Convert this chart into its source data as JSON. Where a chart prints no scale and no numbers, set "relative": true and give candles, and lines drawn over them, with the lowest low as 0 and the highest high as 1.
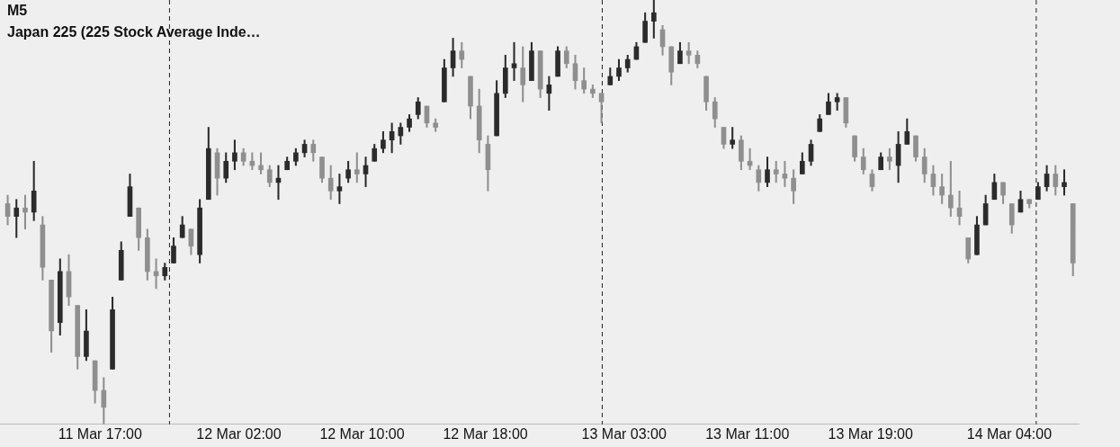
{
  "chart_data": {
    "type": "candlestick",
    "title": "M5",
    "subtitle": "Japan 225 (225 Stock Average Inde…",
    "relative": true,
    "colors": [
      "#8f8f8f",
      "#2b2b2b",
      "#8f8f8f",
      "#2b2b2b",
      "#8f8f8f",
      "#8f8f8f",
      "#2b2b2b",
      "#8f8f8f",
      "#8f8f8f",
      "#2b2b2b",
      "#8f8f8f",
      "#8f8f8f",
      "#2b2b2b",
      "#2b2b2b",
      "#2b2b2b",
      "#8f8f8f",
      "#8f8f8f",
      "#8f8f8f",
      "#2b2b2b",
      "#2b2b2b",
      "#2b2b2b",
      "#8f8f8f",
      "#2b2b2b",
      "#2b2b2b",
      "#8f8f8f",
      "#2b2b2b",
      "#2b2b2b",
      "#8f8f8f",
      "#8f8f8f",
      "#8f8f8f",
      "#8f8f8f",
      "#2b2b2b",
      "#2b2b2b",
      "#2b2b2b",
      "#2b2b2b",
      "#8f8f8f",
      "#8f8f8f",
      "#8f8f8f",
      "#2b2b2b",
      "#2b2b2b",
      "#8f8f8f",
      "#2b2b2b",
      "#2b2b2b",
      "#2b2b2b",
      "#2b2b2b",
      "#2b2b2b",
      "#2b2b2b",
      "#2b2b2b",
      "#8f8f8f",
      "#8f8f8f",
      "#2b2b2b",
      "#2b2b2b",
      "#8f8f8f",
      "#8f8f8f",
      "#8f8f8f",
      "#8f8f8f",
      "#2b2b2b",
      "#2b2b2b",
      "#2b2b2b",
      "#8f8f8f",
      "#2b2b2b",
      "#8f8f8f",
      "#2b2b2b",
      "#2b2b2b",
      "#8f8f8f",
      "#8f8f8f",
      "#8f8f8f",
      "#8f8f8f",
      "#8f8f8f",
      "#2b2b2b",
      "#2b2b2b",
      "#2b2b2b",
      "#2b2b2b",
      "#2b2b2b",
      "#2b2b2b",
      "#8f8f8f",
      "#8f8f8f",
      "#2b2b2b",
      "#8f8f8f",
      "#8f8f8f",
      "#8f8f8f",
      "#8f8f8f",
      "#8f8f8f",
      "#2b2b2b",
      "#8f8f8f",
      "#8f8f8f",
      "#8f8f8f",
      "#2b2b2b",
      "#8f8f8f",
      "#8f8f8f",
      "#8f8f8f",
      "#2b2b2b",
      "#2b2b2b",
      "#2b2b2b",
      "#2b2b2b",
      "#2b2b2b",
      "#8f8f8f",
      "#8f8f8f",
      "#8f8f8f",
      "#8f8f8f",
      "#2b2b2b",
      "#8f8f8f",
      "#2b2b2b",
      "#2b2b2b",
      "#8f8f8f",
      "#8f8f8f",
      "#8f8f8f",
      "#8f8f8f",
      "#8f8f8f",
      "#8f8f8f",
      "#8f8f8f",
      "#2b2b2b",
      "#2b2b2b",
      "#2b2b2b",
      "#8f8f8f",
      "#8f8f8f",
      "#2b2b2b",
      "#8f8f8f",
      "#2b2b2b",
      "#2b2b2b",
      "#8f8f8f",
      "#2b2b2b",
      "#8f8f8f"
    ],
    "x": [
      "--03-11T11:00",
      "--03-11T11:34",
      "--03-11T12:08",
      "--03-11T12:42",
      "--03-11T13:16",
      "--03-11T13:50",
      "--03-11T14:24",
      "--03-11T14:58",
      "--03-11T15:32",
      "--03-11T16:06",
      "--03-11T16:40",
      "--03-11T17:14",
      "--03-11T17:48",
      "--03-11T18:22",
      "--03-11T18:56",
      "--03-11T19:30",
      "--03-11T20:04",
      "--03-11T20:38",
      "--03-11T21:12",
      "--03-11T21:46",
      "--03-11T22:20",
      "--03-11T22:54",
      "--03-11T23:28",
      "--03-12T00:02",
      "--03-12T00:36",
      "--03-12T01:10",
      "--03-12T01:44",
      "--03-12T02:18",
      "--03-12T02:52",
      "--03-12T03:26",
      "--03-12T04:00",
      "--03-12T04:34",
      "--03-12T05:08",
      "--03-12T05:42",
      "--03-12T06:16",
      "--03-12T06:50",
      "--03-12T07:24",
      "--03-12T07:58",
      "--03-12T08:32",
      "--03-12T09:06",
      "--03-12T09:40",
      "--03-12T10:14",
      "--03-12T10:48",
      "--03-12T11:22",
      "--03-12T11:56",
      "--03-12T12:30",
      "--03-12T13:04",
      "--03-12T13:38",
      "--03-12T14:12",
      "--03-12T14:46",
      "--03-12T15:20",
      "--03-12T15:54",
      "--03-12T16:28",
      "--03-12T17:02",
      "--03-12T17:36",
      "--03-12T18:10",
      "--03-12T18:44",
      "--03-12T19:18",
      "--03-12T19:52",
      "--03-12T20:26",
      "--03-12T21:00",
      "--03-12T21:34",
      "--03-12T22:08",
      "--03-12T22:42",
      "--03-12T23:16",
      "--03-12T23:50",
      "--03-13T00:24",
      "--03-13T00:58",
      "--03-13T01:32",
      "--03-13T02:06",
      "--03-13T02:40",
      "--03-13T03:14",
      "--03-13T03:48",
      "--03-13T04:22",
      "--03-13T04:56",
      "--03-13T05:30",
      "--03-13T06:04",
      "--03-13T06:38",
      "--03-13T07:12",
      "--03-13T07:46",
      "--03-13T08:20",
      "--03-13T08:54",
      "--03-13T09:28",
      "--03-13T10:02",
      "--03-13T10:36",
      "--03-13T11:10",
      "--03-13T11:44",
      "--03-13T12:18",
      "--03-13T12:52",
      "--03-13T13:26",
      "--03-13T14:00",
      "--03-13T14:34",
      "--03-13T15:08",
      "--03-13T15:42",
      "--03-13T16:16",
      "--03-13T16:50",
      "--03-13T17:24",
      "--03-13T17:58",
      "--03-13T18:32",
      "--03-13T19:06",
      "--03-13T19:40",
      "--03-13T20:14",
      "--03-13T20:48",
      "--03-13T21:22",
      "--03-13T21:56",
      "--03-13T22:30",
      "--03-13T23:04",
      "--03-13T23:38",
      "--03-14T00:12",
      "--03-14T00:46",
      "--03-14T01:20",
      "--03-14T01:54",
      "--03-14T02:28",
      "--03-14T03:02",
      "--03-14T03:36",
      "--03-14T04:10",
      "--03-14T04:44",
      "--03-14T05:18",
      "--03-14T05:52",
      "--03-14T06:26",
      "--03-14T07:00",
      "--03-14T07:34",
      "--03-14T08:08"
    ],
    "ohlc": [
      [
        0.52,
        0.54,
        0.47,
        0.49
      ],
      [
        0.49,
        0.53,
        0.44,
        0.51
      ],
      [
        0.51,
        0.54,
        0.46,
        0.5
      ],
      [
        0.5,
        0.62,
        0.48,
        0.55
      ],
      [
        0.47,
        0.49,
        0.34,
        0.37
      ],
      [
        0.34,
        0.34,
        0.17,
        0.22
      ],
      [
        0.24,
        0.39,
        0.21,
        0.36
      ],
      [
        0.36,
        0.4,
        0.28,
        0.3
      ],
      [
        0.28,
        0.28,
        0.13,
        0.16
      ],
      [
        0.16,
        0.27,
        0.15,
        0.22
      ],
      [
        0.15,
        0.15,
        0.05,
        0.08
      ],
      [
        0.08,
        0.11,
        0,
        0.04
      ],
      [
        0.13,
        0.3,
        0.13,
        0.27
      ],
      [
        0.34,
        0.43,
        0.34,
        0.41
      ],
      [
        0.49,
        0.59,
        0.49,
        0.56
      ],
      [
        0.51,
        0.51,
        0.41,
        0.44
      ],
      [
        0.44,
        0.46,
        0.34,
        0.36
      ],
      [
        0.36,
        0.39,
        0.32,
        0.35
      ],
      [
        0.35,
        0.38,
        0.34,
        0.37
      ],
      [
        0.38,
        0.44,
        0.38,
        0.42
      ],
      [
        0.44,
        0.49,
        0.44,
        0.47
      ],
      [
        0.46,
        0.46,
        0.4,
        0.42
      ],
      [
        0.4,
        0.53,
        0.38,
        0.51
      ],
      [
        0.53,
        0.7,
        0.53,
        0.65
      ],
      [
        0.64,
        0.65,
        0.54,
        0.58
      ],
      [
        0.58,
        0.64,
        0.57,
        0.62
      ],
      [
        0.62,
        0.67,
        0.6,
        0.64
      ],
      [
        0.64,
        0.65,
        0.61,
        0.62
      ],
      [
        0.62,
        0.64,
        0.6,
        0.61
      ],
      [
        0.61,
        0.64,
        0.59,
        0.6
      ],
      [
        0.6,
        0.61,
        0.56,
        0.57
      ],
      [
        0.57,
        0.61,
        0.53,
        0.58
      ],
      [
        0.6,
        0.63,
        0.6,
        0.62
      ],
      [
        0.62,
        0.65,
        0.61,
        0.64
      ],
      [
        0.64,
        0.67,
        0.63,
        0.66
      ],
      [
        0.66,
        0.67,
        0.62,
        0.64
      ],
      [
        0.63,
        0.63,
        0.57,
        0.58
      ],
      [
        0.58,
        0.61,
        0.53,
        0.55
      ],
      [
        0.55,
        0.59,
        0.52,
        0.56
      ],
      [
        0.58,
        0.62,
        0.57,
        0.6
      ],
      [
        0.6,
        0.64,
        0.57,
        0.59
      ],
      [
        0.59,
        0.63,
        0.56,
        0.61
      ],
      [
        0.62,
        0.66,
        0.62,
        0.65
      ],
      [
        0.65,
        0.69,
        0.64,
        0.67
      ],
      [
        0.67,
        0.71,
        0.64,
        0.69
      ],
      [
        0.68,
        0.71,
        0.66,
        0.7
      ],
      [
        0.7,
        0.73,
        0.69,
        0.72
      ],
      [
        0.73,
        0.77,
        0.72,
        0.76
      ],
      [
        0.75,
        0.75,
        0.7,
        0.71
      ],
      [
        0.71,
        0.72,
        0.69,
        0.7
      ],
      [
        0.76,
        0.86,
        0.76,
        0.84
      ],
      [
        0.84,
        0.91,
        0.82,
        0.88
      ],
      [
        0.88,
        0.9,
        0.84,
        0.86
      ],
      [
        0.82,
        0.82,
        0.72,
        0.75
      ],
      [
        0.75,
        0.79,
        0.64,
        0.67
      ],
      [
        0.66,
        0.68,
        0.55,
        0.6
      ],
      [
        0.68,
        0.81,
        0.68,
        0.78
      ],
      [
        0.78,
        0.87,
        0.77,
        0.84
      ],
      [
        0.84,
        0.9,
        0.81,
        0.85
      ],
      [
        0.84,
        0.89,
        0.76,
        0.8
      ],
      [
        0.81,
        0.9,
        0.81,
        0.88
      ],
      [
        0.88,
        0.88,
        0.77,
        0.79
      ],
      [
        0.78,
        0.82,
        0.74,
        0.8
      ],
      [
        0.82,
        0.89,
        0.82,
        0.88
      ],
      [
        0.88,
        0.89,
        0.84,
        0.85
      ],
      [
        0.85,
        0.87,
        0.79,
        0.81
      ],
      [
        0.81,
        0.84,
        0.78,
        0.79
      ],
      [
        0.79,
        0.8,
        0.77,
        0.78
      ],
      [
        0.78,
        0.78,
        0.71,
        0.76
      ],
      [
        0.8,
        0.84,
        0.8,
        0.82
      ],
      [
        0.82,
        0.86,
        0.81,
        0.84
      ],
      [
        0.84,
        0.87,
        0.83,
        0.86
      ],
      [
        0.86,
        0.9,
        0.86,
        0.89
      ],
      [
        0.9,
        0.97,
        0.9,
        0.95
      ],
      [
        0.95,
        1,
        0.91,
        0.97
      ],
      [
        0.93,
        0.94,
        0.87,
        0.89
      ],
      [
        0.89,
        0.89,
        0.8,
        0.83
      ],
      [
        0.85,
        0.9,
        0.85,
        0.88
      ],
      [
        0.88,
        0.9,
        0.85,
        0.87
      ],
      [
        0.87,
        0.88,
        0.84,
        0.85
      ],
      [
        0.82,
        0.82,
        0.74,
        0.76
      ],
      [
        0.76,
        0.77,
        0.7,
        0.72
      ],
      [
        0.7,
        0.7,
        0.65,
        0.66
      ],
      [
        0.66,
        0.7,
        0.65,
        0.67
      ],
      [
        0.67,
        0.68,
        0.6,
        0.62
      ],
      [
        0.62,
        0.65,
        0.6,
        0.61
      ],
      [
        0.6,
        0.61,
        0.55,
        0.57
      ],
      [
        0.57,
        0.63,
        0.56,
        0.6
      ],
      [
        0.6,
        0.62,
        0.57,
        0.59
      ],
      [
        0.59,
        0.62,
        0.56,
        0.58
      ],
      [
        0.58,
        0.6,
        0.52,
        0.55
      ],
      [
        0.59,
        0.64,
        0.59,
        0.62
      ],
      [
        0.62,
        0.67,
        0.61,
        0.66
      ],
      [
        0.69,
        0.73,
        0.69,
        0.72
      ],
      [
        0.73,
        0.78,
        0.73,
        0.76
      ],
      [
        0.76,
        0.78,
        0.74,
        0.77
      ],
      [
        0.77,
        0.77,
        0.7,
        0.71
      ],
      [
        0.68,
        0.68,
        0.62,
        0.63
      ],
      [
        0.63,
        0.65,
        0.59,
        0.6
      ],
      [
        0.59,
        0.6,
        0.55,
        0.56
      ],
      [
        0.6,
        0.64,
        0.6,
        0.63
      ],
      [
        0.63,
        0.65,
        0.6,
        0.62
      ],
      [
        0.61,
        0.69,
        0.57,
        0.66
      ],
      [
        0.66,
        0.72,
        0.66,
        0.69
      ],
      [
        0.68,
        0.68,
        0.62,
        0.63
      ],
      [
        0.63,
        0.65,
        0.57,
        0.59
      ],
      [
        0.59,
        0.61,
        0.54,
        0.56
      ],
      [
        0.56,
        0.59,
        0.52,
        0.54
      ],
      [
        0.54,
        0.62,
        0.49,
        0.51
      ],
      [
        0.51,
        0.55,
        0.47,
        0.49
      ],
      [
        0.44,
        0.44,
        0.38,
        0.39
      ],
      [
        0.4,
        0.49,
        0.4,
        0.47
      ],
      [
        0.47,
        0.54,
        0.47,
        0.52
      ],
      [
        0.53,
        0.59,
        0.53,
        0.57
      ],
      [
        0.57,
        0.57,
        0.52,
        0.54
      ],
      [
        0.52,
        0.52,
        0.45,
        0.47
      ],
      [
        0.5,
        0.55,
        0.5,
        0.53
      ],
      [
        0.53,
        0.53,
        0.51,
        0.52
      ],
      [
        0.53,
        0.57,
        0.53,
        0.56
      ],
      [
        0.56,
        0.61,
        0.55,
        0.59
      ],
      [
        0.59,
        0.61,
        0.54,
        0.56
      ],
      [
        0.56,
        0.6,
        0.54,
        0.57
      ],
      [
        0.52,
        0.52,
        0.35,
        0.38
      ]
    ],
    "xlim": [
      "--03-11T10:30",
      "--03-14T08:30"
    ],
    "xticks": [
      {
        "value": "--03-11T17:00",
        "label": "11 Mar 17:00"
      },
      {
        "value": "--03-12T02:00",
        "label": "12 Mar 02:00"
      },
      {
        "value": "--03-12T10:00",
        "label": "12 Mar 10:00"
      },
      {
        "value": "--03-12T18:00",
        "label": "12 Mar 18:00"
      },
      {
        "value": "--03-13T03:00",
        "label": "13 Mar 03:00"
      },
      {
        "value": "--03-13T11:00",
        "label": "13 Mar 11:00"
      },
      {
        "value": "--03-13T19:00",
        "label": "13 Mar 19:00"
      },
      {
        "value": "--03-14T04:00",
        "label": "14 Mar 04:00"
      }
    ],
    "ref_lines": [
      {
        "axis": "x",
        "value": "--03-11T21:30",
        "color": "#222222",
        "line_style": "dashed"
      },
      {
        "axis": "x",
        "value": "--03-13T01:35",
        "color": "#222222",
        "line_style": "dashed"
      },
      {
        "axis": "x",
        "value": "--03-14T05:45",
        "color": "#222222",
        "line_style": "dashed"
      }
    ]
  }
}
